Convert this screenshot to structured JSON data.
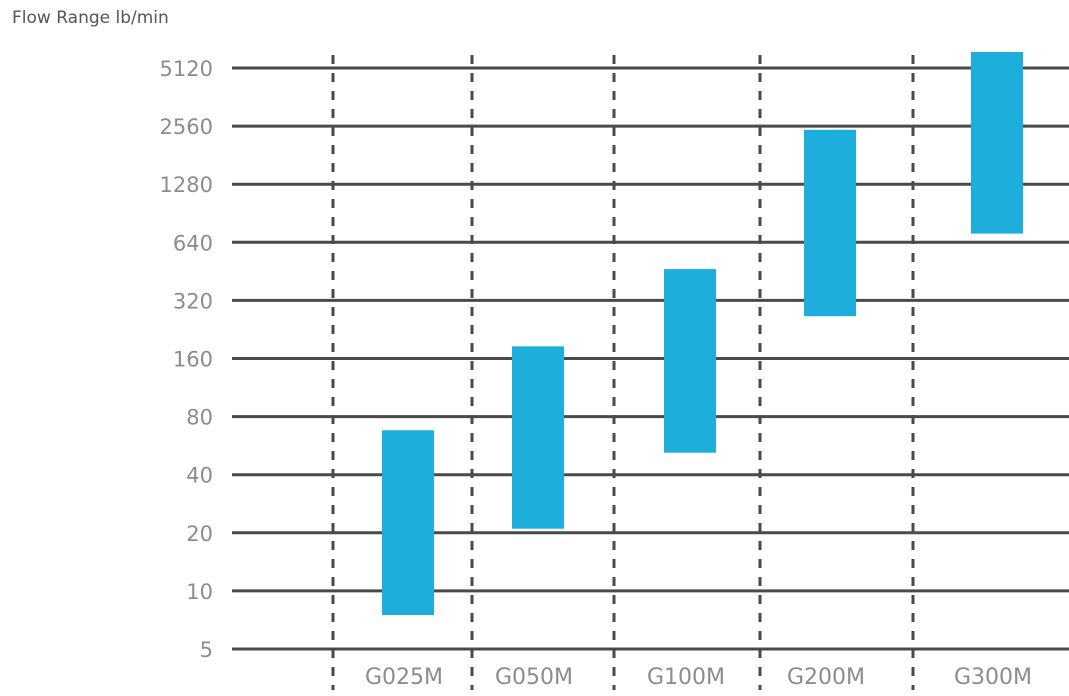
{
  "chart_data": {
    "type": "bar",
    "subtype": "floating-range",
    "title": "",
    "ylabel": "Flow Range lb/min",
    "xlabel": "",
    "yscale": "log2",
    "ylim": [
      5,
      5120
    ],
    "yticks": [
      "5",
      "10",
      "20",
      "40",
      "80",
      "160",
      "320",
      "640",
      "1280",
      "2560",
      "5120"
    ],
    "categories": [
      "G025M",
      "G050M",
      "G100M",
      "G200M",
      "G300M"
    ],
    "series": [
      {
        "ranges": [
          [
            7.5,
            68
          ],
          [
            21,
            185
          ],
          [
            52,
            465
          ],
          [
            265,
            2450
          ],
          [
            710,
            6200
          ]
        ]
      }
    ],
    "grid": {
      "horizontal": true,
      "vertical_dashed": true
    },
    "colors": {
      "bar": "#1eaedc",
      "grid": "#4a4a4a",
      "tick_text": "#8c8c8c",
      "label_text": "#555555"
    }
  }
}
